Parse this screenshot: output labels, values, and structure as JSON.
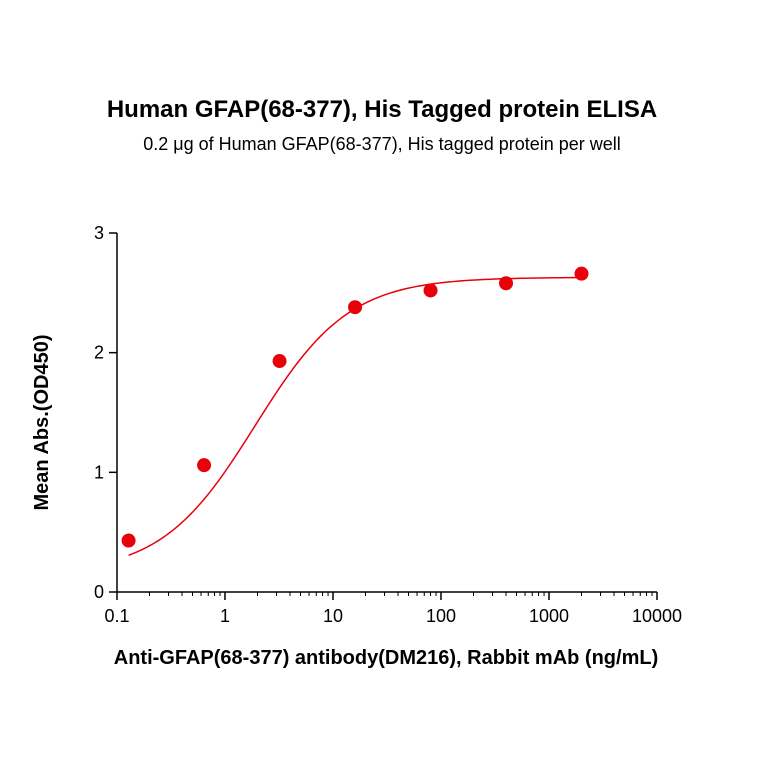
{
  "chart_data": {
    "type": "scatter",
    "title": "Human GFAP(68-377), His Tagged protein ELISA",
    "subtitle": "0.2 μg of Human GFAP(68-377), His tagged protein per well",
    "xlabel": "Anti-GFAP(68-377) antibody(DM216), Rabbit mAb (ng/mL)",
    "ylabel": "Mean Abs.(OD450)",
    "x_scale": "log",
    "xlim": [
      0.1,
      10000
    ],
    "ylim": [
      0,
      3
    ],
    "x_ticks": [
      "0.1",
      "1",
      "10",
      "100",
      "1000",
      "10000"
    ],
    "y_ticks": [
      "0",
      "1",
      "2",
      "3"
    ],
    "grid": false,
    "series": [
      {
        "x": [
          0.128,
          0.64,
          3.2,
          16,
          80,
          400,
          2000
        ],
        "y": [
          0.43,
          1.06,
          1.93,
          2.38,
          2.52,
          2.58,
          2.66
        ],
        "fit": "4PL sigmoidal curve"
      }
    ],
    "colors": {
      "series": "#e8000b",
      "axis": "#000000"
    }
  }
}
